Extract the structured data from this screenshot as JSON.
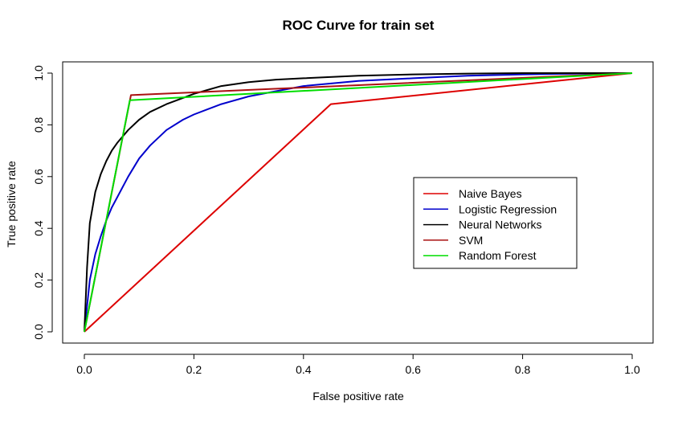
{
  "chart_data": {
    "type": "line",
    "title": "ROC Curve for train set",
    "xlabel": "False positive rate",
    "ylabel": "True positive rate",
    "xlim": [
      0,
      1
    ],
    "ylim": [
      0,
      1
    ],
    "x_ticks": [
      0.0,
      0.2,
      0.4,
      0.6,
      0.8,
      1.0
    ],
    "y_ticks": [
      0.0,
      0.2,
      0.4,
      0.6,
      0.8,
      1.0
    ],
    "x_tick_labels": [
      "0.0",
      "0.2",
      "0.4",
      "0.6",
      "0.8",
      "1.0"
    ],
    "y_tick_labels": [
      "0.0",
      "0.2",
      "0.4",
      "0.6",
      "0.8",
      "1.0"
    ],
    "grid": false,
    "legend_position": "right-center",
    "series": [
      {
        "name": "Naive Bayes",
        "color": "#dd0000",
        "x": [
          0,
          0.45,
          1
        ],
        "y": [
          0,
          0.88,
          1
        ]
      },
      {
        "name": "Logistic Regression",
        "color": "#0000cc",
        "x": [
          0,
          0.005,
          0.01,
          0.02,
          0.03,
          0.04,
          0.05,
          0.06,
          0.08,
          0.1,
          0.12,
          0.15,
          0.18,
          0.2,
          0.25,
          0.3,
          0.35,
          0.4,
          0.5,
          0.6,
          0.7,
          0.8,
          0.9,
          1.0
        ],
        "y": [
          0,
          0.1,
          0.2,
          0.3,
          0.37,
          0.43,
          0.48,
          0.52,
          0.6,
          0.67,
          0.72,
          0.78,
          0.82,
          0.84,
          0.88,
          0.91,
          0.93,
          0.95,
          0.97,
          0.98,
          0.99,
          0.995,
          0.998,
          1.0
        ]
      },
      {
        "name": "Neural Networks",
        "color": "#000000",
        "x": [
          0,
          0.005,
          0.01,
          0.02,
          0.03,
          0.04,
          0.05,
          0.06,
          0.08,
          0.1,
          0.12,
          0.15,
          0.2,
          0.25,
          0.3,
          0.35,
          0.4,
          0.5,
          0.6,
          0.7,
          0.8,
          1.0
        ],
        "y": [
          0,
          0.25,
          0.42,
          0.54,
          0.61,
          0.66,
          0.7,
          0.73,
          0.78,
          0.82,
          0.85,
          0.88,
          0.92,
          0.95,
          0.965,
          0.975,
          0.98,
          0.99,
          0.995,
          0.998,
          1.0,
          1.0
        ]
      },
      {
        "name": "SVM",
        "color": "#aa1111",
        "x": [
          0,
          0.085,
          1
        ],
        "y": [
          0,
          0.915,
          1
        ]
      },
      {
        "name": "Random Forest",
        "color": "#00dd00",
        "x": [
          0,
          0.083,
          1
        ],
        "y": [
          0,
          0.895,
          1
        ]
      }
    ]
  }
}
